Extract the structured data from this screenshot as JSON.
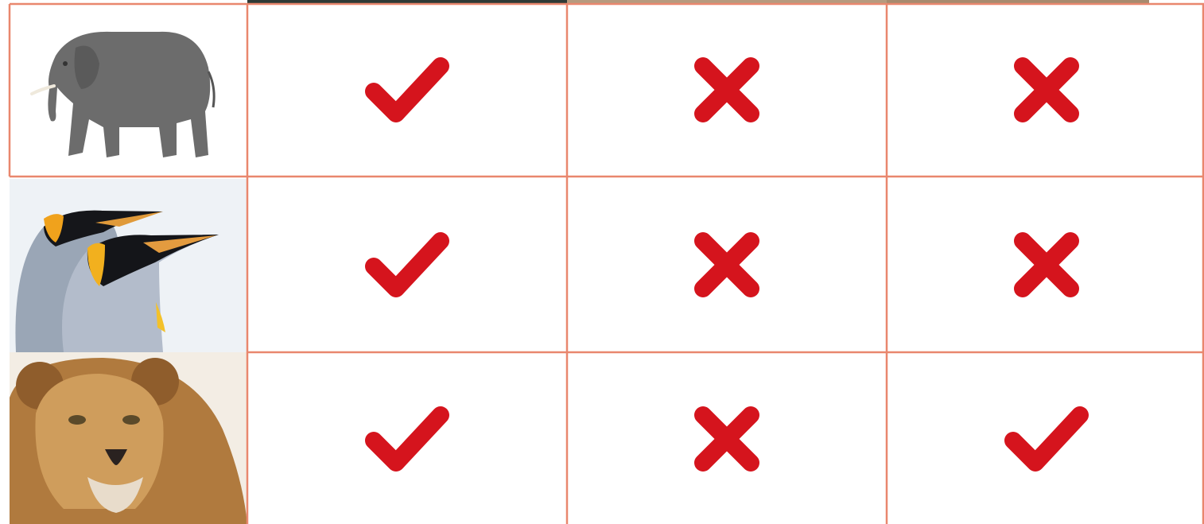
{
  "table": {
    "rows": [
      [
        true,
        false,
        false
      ],
      [
        true,
        false,
        false
      ],
      [
        true,
        false,
        true
      ]
    ]
  }
}
